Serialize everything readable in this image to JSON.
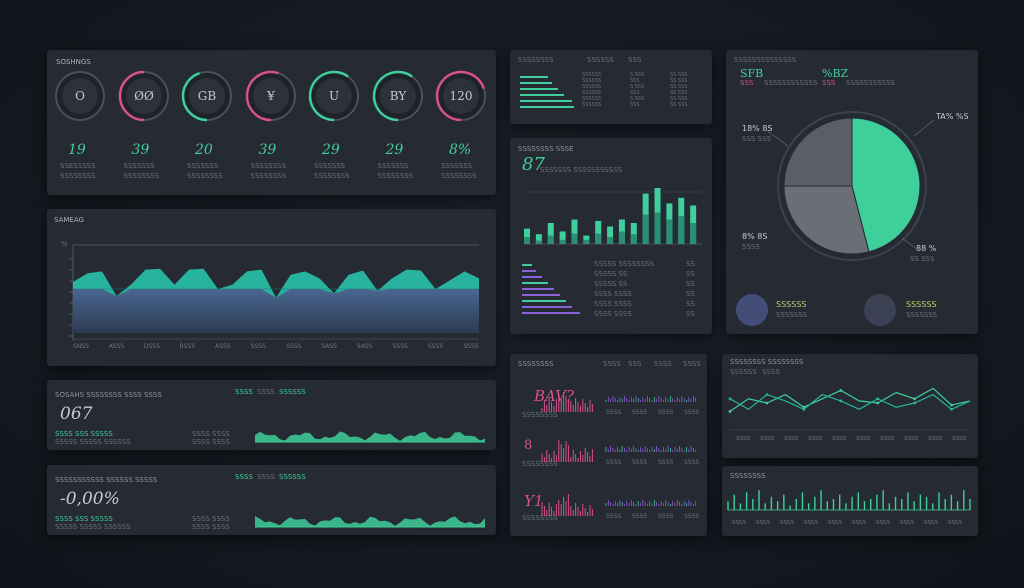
{
  "colors": {
    "background": "#14181f",
    "panel": "#252a33",
    "accent_green": "#3fcf9a",
    "accent_teal": "#27b39d",
    "accent_pink": "#d94f8f",
    "accent_yellow": "#c7c866",
    "area_blue": "#4a6891"
  },
  "gauges_panel": {
    "title": "SOSHNGS",
    "gauges": [
      {
        "label": "O",
        "value": 0,
        "stat": "19",
        "desc": "SSESSSSS",
        "color": "#3fcf9a"
      },
      {
        "label": "ØØ",
        "value": 0.5,
        "stat": "39",
        "desc": "SSSSSSS",
        "color": "#d94f8f"
      },
      {
        "label": "GB",
        "value": 0.45,
        "stat": "20",
        "desc": "SSSSSSS",
        "color": "#3fcf9a"
      },
      {
        "label": "¥",
        "value": 0.55,
        "stat": "39",
        "desc": "SSSSSSSS",
        "color": "#d94f8f"
      },
      {
        "label": "U",
        "value": 0.6,
        "stat": "29",
        "desc": "SSSSSSS",
        "color": "#3fcf9a"
      },
      {
        "label": "BY",
        "value": 0.6,
        "stat": "29",
        "desc": "SSSSSSS",
        "color": "#3fcf9a"
      },
      {
        "label": "120",
        "value": 0.7,
        "stat": "8%",
        "desc": "SSSSSSS",
        "color": "#d94f8f"
      }
    ]
  },
  "area_panel": {
    "title": "SAMEAG",
    "ylabel": "%",
    "x_ticks": [
      "SNSS",
      "ASSS",
      "DSSS",
      "RSSS",
      "ASSS",
      "SSSS",
      "SSSS",
      "SASS",
      "SASS",
      "SSSS",
      "SSSS",
      "SSSS"
    ]
  },
  "kpi_panel_1": {
    "title": "SOSAHS SSSSSSSS SSSS SSSS",
    "value": "067",
    "legend": [
      "SSSS",
      "SSSS",
      "SSSSSS"
    ]
  },
  "kpi_panel_2": {
    "title": "SSSSSSSSSSS SSSSSS SSSSS",
    "value": "-0,00%",
    "legend": [
      "SSSS",
      "SSSS",
      "SSSSSS"
    ]
  },
  "list_panel": {
    "headers": [
      "SSSSSSSS",
      "SSSSSS",
      "SSS"
    ]
  },
  "bar_panel": {
    "title": "SSSSSSSS SSSE",
    "value": "87",
    "subtitle": "SSSSSSS SSSSSSSSSSS"
  },
  "pie_panel": {
    "stats": [
      {
        "value": "SFB",
        "sub": "SSS"
      },
      {
        "value": "%BZ",
        "sub": "SSS"
      }
    ],
    "callouts": [
      {
        "value": "18% 8S",
        "sub": "SSS SSS"
      },
      {
        "value": "TA% %S",
        "sub": ""
      },
      {
        "value": "88 %",
        "sub": "SS SSS"
      },
      {
        "value": "8% 8S",
        "sub": "SSSS"
      }
    ],
    "legend": [
      {
        "value": "SSSSSS",
        "sub": "SSSSSSS"
      },
      {
        "value": "SSSSSS",
        "sub": "SSSSSSS"
      }
    ]
  },
  "sparkline_panel": {
    "title": "SSSSSSSS",
    "rows": [
      {
        "value": "BAV?",
        "label": "SSSSSSSS"
      },
      {
        "value": "8",
        "label": "SSSSSSSS"
      },
      {
        "value": "Y1",
        "label": "SSSSSSSS"
      }
    ]
  },
  "line_panel": {
    "title": "SSSSSSSS SSSSSSSS",
    "legend": [
      "SSSSSS",
      "SSSS"
    ]
  },
  "spike_panel": {
    "title": "SSSSSSSS"
  },
  "chart_data": [
    {
      "type": "area",
      "title": "SAMEAG",
      "x_labels": [
        "SNSS",
        "ASSS",
        "DSSS",
        "RSSS",
        "ASSS",
        "SSSS",
        "SSSS",
        "SASS",
        "SASS",
        "SSSS",
        "SSSS",
        "SSSS"
      ],
      "ylim": [
        0,
        1
      ],
      "series": [
        {
          "values": [
            0.58,
            0.68,
            0.7,
            0.42,
            0.55,
            0.72,
            0.73,
            0.55,
            0.72,
            0.73,
            0.5,
            0.55,
            0.7,
            0.72,
            0.4,
            0.66,
            0.7,
            0.62,
            0.45,
            0.66,
            0.71,
            0.48,
            0.62,
            0.72,
            0.71,
            0.5,
            0.6,
            0.7,
            0.62
          ]
        },
        {
          "values": [
            0.5,
            0.5,
            0.5,
            0.5,
            0.5,
            0.5,
            0.5,
            0.5,
            0.5,
            0.5,
            0.5,
            0.5,
            0.5,
            0.5,
            0.5,
            0.5,
            0.5,
            0.5,
            0.5,
            0.5,
            0.5,
            0.5,
            0.5,
            0.5,
            0.5,
            0.5,
            0.5,
            0.5,
            0.5
          ]
        }
      ]
    },
    {
      "type": "bar",
      "title": "SSSSSSSS SSSE",
      "ylim": [
        0,
        1
      ],
      "series": [
        {
          "values": [
            0.22,
            0.14,
            0.3,
            0.18,
            0.35,
            0.12,
            0.33,
            0.25,
            0.35,
            0.3,
            0.72,
            0.8,
            0.58,
            0.66,
            0.55
          ]
        },
        {
          "values": [
            0.1,
            0.05,
            0.12,
            0.06,
            0.15,
            0.06,
            0.15,
            0.1,
            0.18,
            0.14,
            0.42,
            0.45,
            0.35,
            0.4,
            0.3
          ]
        }
      ]
    },
    {
      "type": "pie",
      "slices": [
        {
          "value": 0.46,
          "color": "#3fcf9a"
        },
        {
          "value": 0.29,
          "color": "#6a6f76"
        },
        {
          "value": 0.25,
          "color": "#5a5f66"
        }
      ]
    },
    {
      "type": "line",
      "title": "SSSSSSSS SSSSSSSS",
      "ylim": [
        0,
        1
      ],
      "series": [
        {
          "values": [
            0.3,
            0.6,
            0.5,
            0.7,
            0.4,
            0.6,
            0.8,
            0.55,
            0.5,
            0.75,
            0.6,
            0.85,
            0.45,
            0.55
          ]
        },
        {
          "values": [
            0.6,
            0.35,
            0.7,
            0.55,
            0.35,
            0.7,
            0.55,
            0.35,
            0.6,
            0.4,
            0.5,
            0.7,
            0.35,
            0.55
          ]
        }
      ]
    },
    {
      "type": "bar",
      "title": "SSSSSSSS",
      "ylim": [
        0,
        1
      ],
      "series": [
        {
          "values": [
            0.4,
            0.7,
            0.3,
            0.8,
            0.5,
            0.9,
            0.3,
            0.6,
            0.4,
            0.7,
            0.2,
            0.5,
            0.8,
            0.3,
            0.6,
            0.9,
            0.4,
            0.5,
            0.7,
            0.3,
            0.6,
            0.8,
            0.4,
            0.5,
            0.7,
            0.9,
            0.3,
            0.6,
            0.5,
            0.8,
            0.4,
            0.7,
            0.6,
            0.3,
            0.8,
            0.5,
            0.7,
            0.4,
            0.9,
            0.5
          ]
        }
      ]
    }
  ]
}
